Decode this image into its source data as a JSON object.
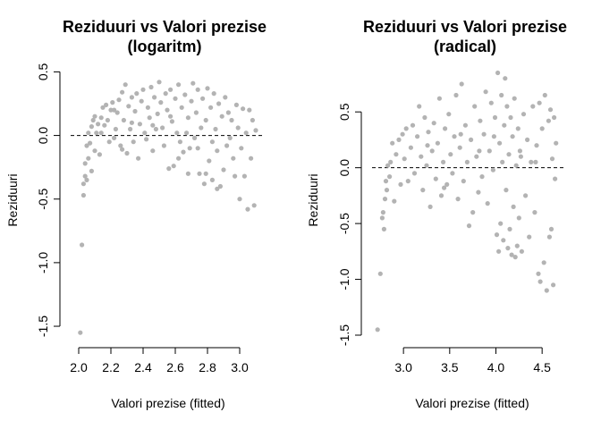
{
  "chart_data": [
    {
      "type": "scatter",
      "title": "Reziduuri vs Valori prezise",
      "subtitle": "(logaritm)",
      "xlabel": "Valori prezise (fitted)",
      "ylabel": "Reziduuri",
      "xlim": [
        1.95,
        3.15
      ],
      "ylim": [
        -1.57,
        0.51
      ],
      "xticks": [
        "2.0",
        "2.2",
        "2.4",
        "2.6",
        "2.8",
        "3.0"
      ],
      "yticks": [
        "-1.5",
        "-1.0",
        "-0.5",
        "0.0",
        "0.5"
      ],
      "reference_line": {
        "y": 0,
        "style": "dashed"
      },
      "point_color": "#b3b3b3",
      "grid": false,
      "points": [
        [
          2.01,
          -1.55
        ],
        [
          2.02,
          -0.86
        ],
        [
          2.03,
          -0.47
        ],
        [
          2.03,
          -0.38
        ],
        [
          2.04,
          -0.32
        ],
        [
          2.05,
          -0.35
        ],
        [
          2.04,
          -0.22
        ],
        [
          2.06,
          -0.18
        ],
        [
          2.05,
          -0.08
        ],
        [
          2.07,
          -0.06
        ],
        [
          2.06,
          0.02
        ],
        [
          2.08,
          0.07
        ],
        [
          2.08,
          -0.28
        ],
        [
          2.09,
          0.12
        ],
        [
          2.1,
          0.15
        ],
        [
          2.1,
          -0.12
        ],
        [
          2.11,
          0.02
        ],
        [
          2.12,
          0.09
        ],
        [
          2.13,
          -0.15
        ],
        [
          2.14,
          0.14
        ],
        [
          2.15,
          0.22
        ],
        [
          2.16,
          0.08
        ],
        [
          2.17,
          0.24
        ],
        [
          2.18,
          0.12
        ],
        [
          2.19,
          -0.05
        ],
        [
          2.2,
          0.2
        ],
        [
          2.21,
          0.26
        ],
        [
          2.22,
          -0.02
        ],
        [
          2.23,
          0.05
        ],
        [
          2.24,
          0.18
        ],
        [
          2.25,
          0.28
        ],
        [
          2.26,
          -0.08
        ],
        [
          2.27,
          0.34
        ],
        [
          2.28,
          0.12
        ],
        [
          2.29,
          0.4
        ],
        [
          2.3,
          -0.14
        ],
        [
          2.31,
          0.23
        ],
        [
          2.32,
          0.05
        ],
        [
          2.33,
          0.3
        ],
        [
          2.34,
          -0.05
        ],
        [
          2.35,
          0.19
        ],
        [
          2.36,
          0.33
        ],
        [
          2.37,
          -0.18
        ],
        [
          2.38,
          0.09
        ],
        [
          2.39,
          0.27
        ],
        [
          2.4,
          0.36
        ],
        [
          2.41,
          0.02
        ],
        [
          2.42,
          -0.03
        ],
        [
          2.43,
          0.22
        ],
        [
          2.44,
          0.14
        ],
        [
          2.45,
          0.38
        ],
        [
          2.46,
          -0.12
        ],
        [
          2.47,
          0.3
        ],
        [
          2.48,
          0.05
        ],
        [
          2.49,
          0.17
        ],
        [
          2.5,
          0.42
        ],
        [
          2.51,
          0.26
        ],
        [
          2.52,
          0.06
        ],
        [
          2.53,
          -0.08
        ],
        [
          2.54,
          0.33
        ],
        [
          2.55,
          0.2
        ],
        [
          2.56,
          -0.26
        ],
        [
          2.57,
          0.36
        ],
        [
          2.58,
          0.11
        ],
        [
          2.59,
          -0.24
        ],
        [
          2.6,
          0.29
        ],
        [
          2.61,
          0.02
        ],
        [
          2.62,
          0.4
        ],
        [
          2.63,
          -0.05
        ],
        [
          2.64,
          0.22
        ],
        [
          2.65,
          -0.13
        ],
        [
          2.66,
          0.32
        ],
        [
          2.67,
          0.02
        ],
        [
          2.68,
          0.14
        ],
        [
          2.69,
          -0.1
        ],
        [
          2.7,
          0.27
        ],
        [
          2.71,
          0.41
        ],
        [
          2.72,
          -0.02
        ],
        [
          2.73,
          0.18
        ],
        [
          2.74,
          0.36
        ],
        [
          2.75,
          -0.3
        ],
        [
          2.76,
          0.06
        ],
        [
          2.77,
          0.29
        ],
        [
          2.78,
          -0.38
        ],
        [
          2.79,
          0.12
        ],
        [
          2.8,
          0.37
        ],
        [
          2.81,
          -0.2
        ],
        [
          2.82,
          0.22
        ],
        [
          2.83,
          -0.35
        ],
        [
          2.84,
          0.33
        ],
        [
          2.85,
          0.05
        ],
        [
          2.86,
          -0.12
        ],
        [
          2.87,
          0.25
        ],
        [
          2.88,
          -0.4
        ],
        [
          2.89,
          0.15
        ],
        [
          2.9,
          -0.27
        ],
        [
          2.91,
          0.3
        ],
        [
          2.92,
          -0.08
        ],
        [
          2.93,
          0.18
        ],
        [
          2.94,
          -0.02
        ],
        [
          2.95,
          0.12
        ],
        [
          2.96,
          -0.18
        ],
        [
          2.97,
          -0.32
        ],
        [
          2.98,
          0.24
        ],
        [
          2.99,
          0.06
        ],
        [
          3.0,
          -0.5
        ],
        [
          3.01,
          -0.1
        ],
        [
          3.02,
          0.21
        ],
        [
          3.03,
          -0.32
        ],
        [
          3.04,
          0.02
        ],
        [
          3.05,
          -0.58
        ],
        [
          3.06,
          0.2
        ],
        [
          3.07,
          -0.18
        ],
        [
          3.08,
          0.12
        ],
        [
          3.09,
          -0.55
        ],
        [
          3.1,
          0.04
        ],
        [
          2.62,
          -0.18
        ],
        [
          2.68,
          -0.3
        ],
        [
          2.74,
          -0.1
        ],
        [
          2.79,
          -0.3
        ],
        [
          2.83,
          -0.05
        ],
        [
          2.86,
          -0.42
        ],
        [
          2.46,
          0.08
        ],
        [
          2.57,
          0.15
        ],
        [
          2.33,
          0.1
        ],
        [
          2.27,
          -0.11
        ],
        [
          2.22,
          0.2
        ],
        [
          2.14,
          0.02
        ]
      ]
    },
    {
      "type": "scatter",
      "title": "Reziduuri vs Valori prezise",
      "subtitle": "(radical)",
      "xlabel": "Valori prezise (fitted)",
      "ylabel": "Reziduuri",
      "xlim": [
        2.66,
        4.75
      ],
      "ylim": [
        -1.5,
        0.87
      ],
      "xticks": [
        "3.0",
        "3.5",
        "4.0",
        "4.5"
      ],
      "yticks": [
        "-1.5",
        "-1.0",
        "-0.5",
        "0.0",
        "0.5"
      ],
      "reference_line": {
        "y": 0,
        "style": "dashed"
      },
      "point_color": "#b3b3b3",
      "grid": false,
      "points": [
        [
          2.72,
          -1.45
        ],
        [
          2.75,
          -0.95
        ],
        [
          2.77,
          -0.45
        ],
        [
          2.78,
          -0.4
        ],
        [
          2.79,
          -0.55
        ],
        [
          2.8,
          -0.28
        ],
        [
          2.81,
          -0.12
        ],
        [
          2.82,
          -0.2
        ],
        [
          2.83,
          0.02
        ],
        [
          2.85,
          -0.08
        ],
        [
          2.86,
          0.05
        ],
        [
          2.88,
          0.22
        ],
        [
          2.9,
          -0.3
        ],
        [
          2.92,
          0.12
        ],
        [
          2.95,
          0.25
        ],
        [
          2.97,
          -0.15
        ],
        [
          2.99,
          0.3
        ],
        [
          3.01,
          0.08
        ],
        [
          3.03,
          0.35
        ],
        [
          3.05,
          -0.12
        ],
        [
          3.08,
          0.18
        ],
        [
          3.1,
          0.38
        ],
        [
          3.12,
          -0.05
        ],
        [
          3.15,
          0.28
        ],
        [
          3.17,
          0.55
        ],
        [
          3.19,
          0.1
        ],
        [
          3.21,
          -0.2
        ],
        [
          3.23,
          0.45
        ],
        [
          3.25,
          0.02
        ],
        [
          3.27,
          0.32
        ],
        [
          3.29,
          -0.35
        ],
        [
          3.31,
          0.15
        ],
        [
          3.33,
          0.4
        ],
        [
          3.35,
          -0.1
        ],
        [
          3.37,
          0.22
        ],
        [
          3.39,
          0.62
        ],
        [
          3.41,
          -0.25
        ],
        [
          3.43,
          0.05
        ],
        [
          3.45,
          0.35
        ],
        [
          3.47,
          -0.15
        ],
        [
          3.49,
          0.48
        ],
        [
          3.51,
          0.12
        ],
        [
          3.53,
          -0.05
        ],
        [
          3.55,
          0.28
        ],
        [
          3.57,
          0.65
        ],
        [
          3.59,
          -0.28
        ],
        [
          3.61,
          0.18
        ],
        [
          3.63,
          0.75
        ],
        [
          3.65,
          -0.12
        ],
        [
          3.67,
          0.38
        ],
        [
          3.69,
          0.05
        ],
        [
          3.71,
          -0.52
        ],
        [
          3.73,
          0.25
        ],
        [
          3.75,
          -0.4
        ],
        [
          3.77,
          0.55
        ],
        [
          3.79,
          0.1
        ],
        [
          3.81,
          -0.22
        ],
        [
          3.83,
          0.42
        ],
        [
          3.85,
          -0.08
        ],
        [
          3.87,
          0.3
        ],
        [
          3.89,
          0.68
        ],
        [
          3.91,
          -0.32
        ],
        [
          3.93,
          0.15
        ],
        [
          3.95,
          0.58
        ],
        [
          3.97,
          -0.02
        ],
        [
          3.99,
          0.45
        ],
        [
          4.01,
          -0.6
        ],
        [
          4.02,
          0.85
        ],
        [
          4.03,
          -0.75
        ],
        [
          4.04,
          0.22
        ],
        [
          4.05,
          -0.5
        ],
        [
          4.06,
          0.65
        ],
        [
          4.07,
          0.05
        ],
        [
          4.08,
          -0.65
        ],
        [
          4.09,
          0.38
        ],
        [
          4.1,
          0.8
        ],
        [
          4.11,
          -0.2
        ],
        [
          4.12,
          0.55
        ],
        [
          4.13,
          -0.72
        ],
        [
          4.14,
          0.12
        ],
        [
          4.15,
          -0.55
        ],
        [
          4.16,
          0.45
        ],
        [
          4.17,
          -0.78
        ],
        [
          4.18,
          0.28
        ],
        [
          4.19,
          -0.35
        ],
        [
          4.2,
          0.62
        ],
        [
          4.21,
          -0.8
        ],
        [
          4.22,
          0.02
        ],
        [
          4.23,
          -0.7
        ],
        [
          4.24,
          0.35
        ],
        [
          4.25,
          -0.45
        ],
        [
          4.26,
          0.15
        ],
        [
          4.28,
          -0.75
        ],
        [
          4.3,
          0.48
        ],
        [
          4.32,
          -0.25
        ],
        [
          4.34,
          0.25
        ],
        [
          4.36,
          -0.62
        ],
        [
          4.38,
          0.05
        ],
        [
          4.4,
          0.55
        ],
        [
          4.42,
          -0.4
        ],
        [
          4.44,
          0.2
        ],
        [
          4.46,
          -0.95
        ],
        [
          4.47,
          0.58
        ],
        [
          4.48,
          -1.02
        ],
        [
          4.5,
          0.35
        ],
        [
          4.52,
          -0.85
        ],
        [
          4.53,
          0.65
        ],
        [
          4.55,
          -1.1
        ],
        [
          4.57,
          0.42
        ],
        [
          4.58,
          -0.62
        ],
        [
          4.59,
          0.52
        ],
        [
          4.6,
          -0.55
        ],
        [
          4.61,
          0.08
        ],
        [
          4.62,
          -1.05
        ],
        [
          4.63,
          0.45
        ],
        [
          4.64,
          -0.1
        ],
        [
          4.65,
          0.22
        ],
        [
          3.26,
          0.2
        ],
        [
          3.44,
          -0.18
        ],
        [
          3.62,
          0.3
        ],
        [
          3.82,
          0.15
        ],
        [
          3.98,
          0.28
        ],
        [
          4.27,
          0.1
        ],
        [
          4.43,
          0.05
        ]
      ]
    }
  ]
}
